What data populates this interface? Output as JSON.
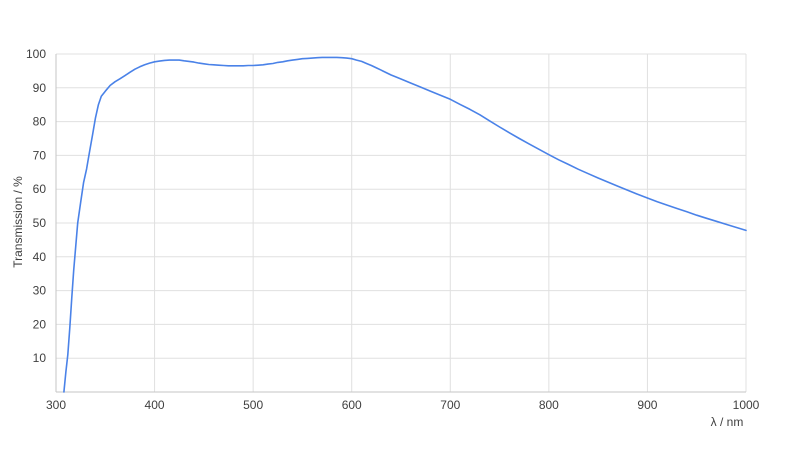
{
  "page": {
    "background": "#ffffff"
  },
  "chart_data": {
    "type": "line",
    "title": "",
    "xlabel": "λ / nm",
    "ylabel": "Transmission / %",
    "xlim": [
      300,
      1000
    ],
    "ylim": [
      0,
      100
    ],
    "x_ticks": [
      300,
      400,
      500,
      600,
      700,
      800,
      900,
      1000
    ],
    "y_ticks": [
      10,
      20,
      30,
      40,
      50,
      60,
      70,
      80,
      90,
      100
    ],
    "grid": true,
    "legend_position": "none",
    "line_color": "#4a82e8",
    "grid_color": "#e0e0e0",
    "axis_color": "#c6c6c6",
    "text_color": "#404040",
    "series": [
      {
        "name": "Transmission",
        "points": [
          [
            308,
            0
          ],
          [
            310,
            6
          ],
          [
            312,
            11
          ],
          [
            314,
            19
          ],
          [
            316,
            28
          ],
          [
            318,
            36
          ],
          [
            320,
            43
          ],
          [
            322,
            50
          ],
          [
            325,
            56
          ],
          [
            328,
            62
          ],
          [
            331,
            66
          ],
          [
            334,
            71
          ],
          [
            337,
            76
          ],
          [
            340,
            81
          ],
          [
            343,
            85
          ],
          [
            346,
            87.5
          ],
          [
            350,
            89
          ],
          [
            355,
            90.7
          ],
          [
            360,
            91.8
          ],
          [
            365,
            92.7
          ],
          [
            370,
            93.6
          ],
          [
            375,
            94.6
          ],
          [
            380,
            95.5
          ],
          [
            385,
            96.2
          ],
          [
            390,
            96.8
          ],
          [
            395,
            97.3
          ],
          [
            400,
            97.7
          ],
          [
            405,
            97.9
          ],
          [
            410,
            98.1
          ],
          [
            415,
            98.2
          ],
          [
            420,
            98.2
          ],
          [
            425,
            98.2
          ],
          [
            430,
            98.0
          ],
          [
            435,
            97.8
          ],
          [
            440,
            97.6
          ],
          [
            445,
            97.3
          ],
          [
            450,
            97.1
          ],
          [
            455,
            96.9
          ],
          [
            460,
            96.8
          ],
          [
            465,
            96.7
          ],
          [
            470,
            96.6
          ],
          [
            475,
            96.5
          ],
          [
            480,
            96.5
          ],
          [
            485,
            96.5
          ],
          [
            490,
            96.5
          ],
          [
            495,
            96.6
          ],
          [
            500,
            96.6
          ],
          [
            505,
            96.7
          ],
          [
            510,
            96.8
          ],
          [
            515,
            97.0
          ],
          [
            520,
            97.2
          ],
          [
            525,
            97.5
          ],
          [
            530,
            97.7
          ],
          [
            535,
            98.0
          ],
          [
            540,
            98.2
          ],
          [
            545,
            98.4
          ],
          [
            550,
            98.6
          ],
          [
            555,
            98.7
          ],
          [
            560,
            98.8
          ],
          [
            565,
            98.9
          ],
          [
            570,
            99.0
          ],
          [
            575,
            99.0
          ],
          [
            580,
            99.0
          ],
          [
            585,
            99.0
          ],
          [
            590,
            98.9
          ],
          [
            595,
            98.8
          ],
          [
            600,
            98.6
          ],
          [
            605,
            98.2
          ],
          [
            610,
            97.8
          ],
          [
            615,
            97.2
          ],
          [
            620,
            96.6
          ],
          [
            625,
            95.9
          ],
          [
            630,
            95.2
          ],
          [
            635,
            94.5
          ],
          [
            640,
            93.8
          ],
          [
            645,
            93.2
          ],
          [
            650,
            92.6
          ],
          [
            660,
            91.4
          ],
          [
            670,
            90.2
          ],
          [
            680,
            89.0
          ],
          [
            690,
            87.8
          ],
          [
            700,
            86.6
          ],
          [
            710,
            85.1
          ],
          [
            720,
            83.6
          ],
          [
            730,
            82.0
          ],
          [
            740,
            80.2
          ],
          [
            750,
            78.4
          ],
          [
            760,
            76.7
          ],
          [
            770,
            75.0
          ],
          [
            780,
            73.4
          ],
          [
            790,
            71.8
          ],
          [
            800,
            70.2
          ],
          [
            810,
            68.7
          ],
          [
            820,
            67.3
          ],
          [
            830,
            65.9
          ],
          [
            840,
            64.6
          ],
          [
            850,
            63.3
          ],
          [
            860,
            62.1
          ],
          [
            870,
            60.9
          ],
          [
            880,
            59.7
          ],
          [
            890,
            58.5
          ],
          [
            900,
            57.4
          ],
          [
            910,
            56.3
          ],
          [
            920,
            55.3
          ],
          [
            930,
            54.3
          ],
          [
            940,
            53.3
          ],
          [
            950,
            52.3
          ],
          [
            960,
            51.4
          ],
          [
            970,
            50.5
          ],
          [
            980,
            49.6
          ],
          [
            990,
            48.7
          ],
          [
            1000,
            47.8
          ]
        ]
      }
    ]
  }
}
